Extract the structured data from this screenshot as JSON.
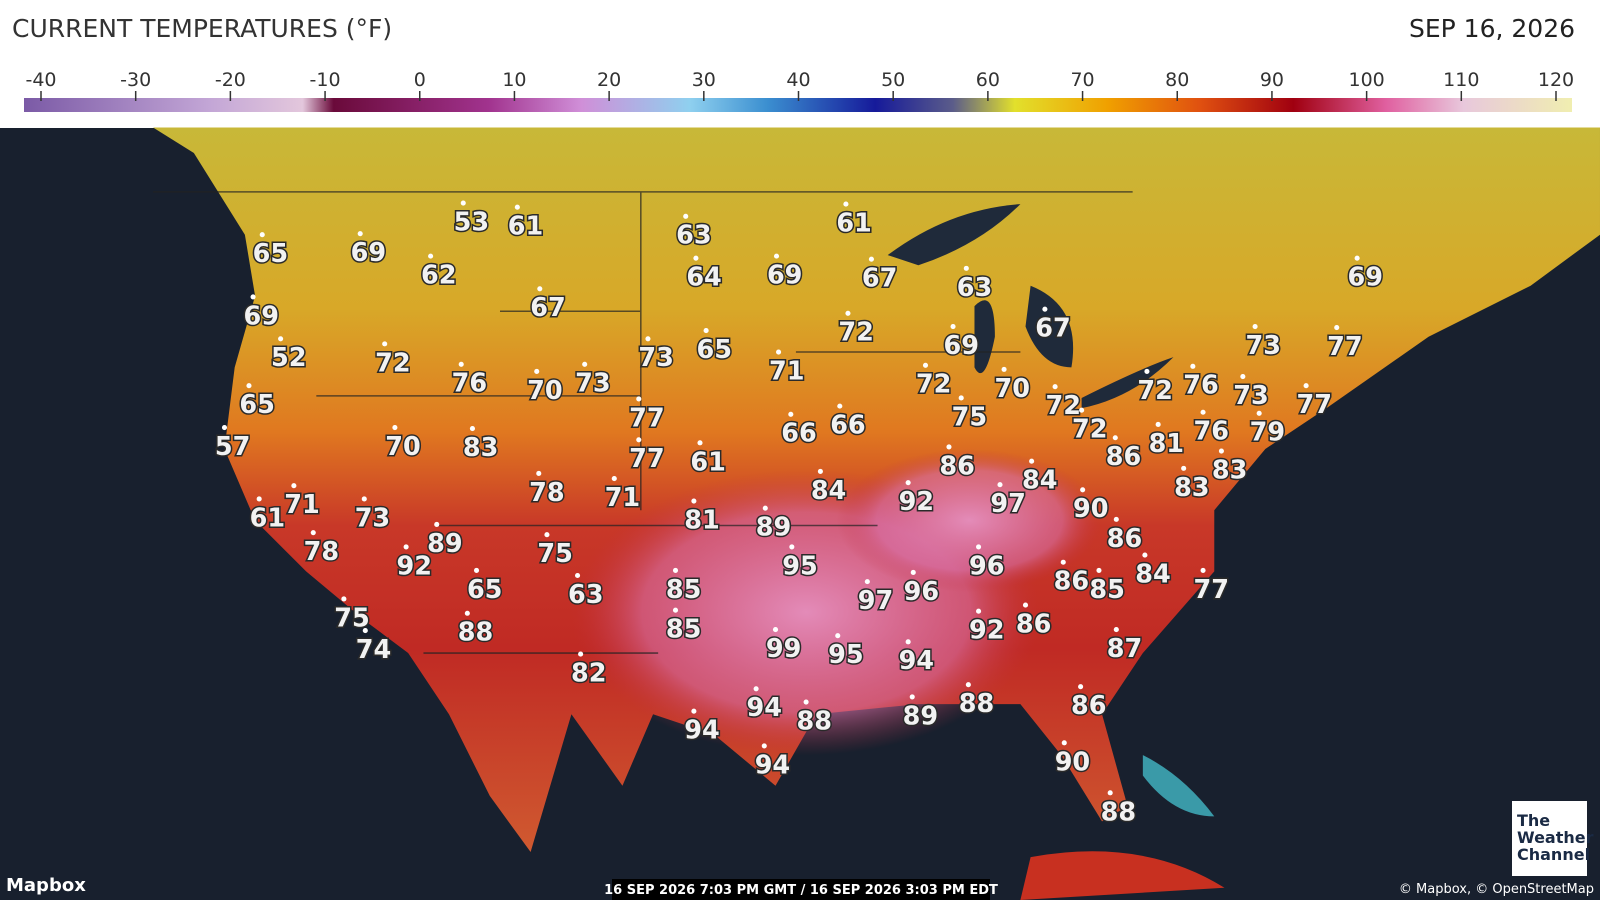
{
  "header": {
    "title": "CURRENT TEMPERATURES (°F)",
    "date": "SEP 16, 2026"
  },
  "legend": {
    "ticks": [
      -40,
      -30,
      -20,
      -10,
      0,
      10,
      20,
      30,
      40,
      50,
      60,
      70,
      80,
      90,
      100,
      110,
      120
    ]
  },
  "map": {
    "readings": [
      53,
      61,
      65,
      69,
      62,
      63,
      61,
      64,
      69,
      67,
      63,
      69,
      69,
      67,
      72,
      67,
      52,
      72,
      73,
      65,
      69,
      73,
      77,
      71,
      65,
      76,
      70,
      73,
      72,
      70,
      72,
      76,
      73,
      77,
      72,
      57,
      77,
      75,
      72,
      76,
      79,
      70,
      83,
      66,
      66,
      77,
      61,
      86,
      86,
      81,
      84,
      83,
      83,
      84,
      92,
      97,
      90,
      61,
      71,
      73,
      78,
      71,
      81,
      89,
      86,
      78,
      89,
      92,
      75,
      95,
      96,
      86,
      85,
      84,
      77,
      65,
      63,
      85,
      97,
      96,
      75,
      74,
      88,
      85,
      99,
      95,
      94,
      92,
      86,
      87,
      82,
      94,
      88,
      89,
      88,
      86,
      94,
      90,
      94,
      88
    ]
  },
  "footer": {
    "brand": "Mapbox",
    "timestamp": "16 SEP 2026 7:03 PM GMT / 16 SEP 2026 3:03 PM EDT",
    "attribution": "© Mapbox, © OpenStreetMap",
    "logo": [
      "The",
      "Weather",
      "Channel"
    ]
  }
}
